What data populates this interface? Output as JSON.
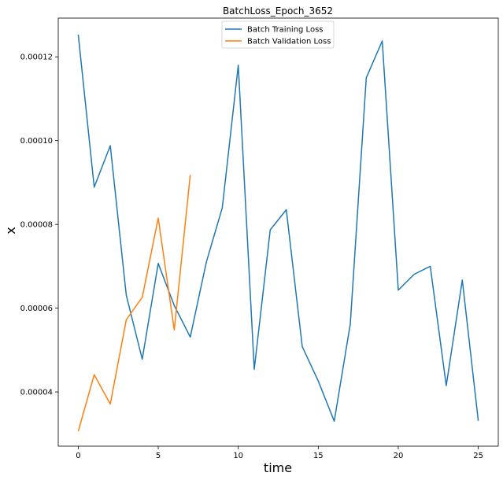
{
  "chart_data": {
    "type": "line",
    "title": "BatchLoss_Epoch_3652",
    "xlabel": "time",
    "ylabel": "x",
    "xlim": [
      -1.25,
      26.25
    ],
    "ylim": [
      2.705e-05,
      0.00012925
    ],
    "xticks": [
      0,
      5,
      10,
      15,
      20,
      25
    ],
    "xtick_labels": [
      "0",
      "5",
      "10",
      "15",
      "20",
      "25"
    ],
    "yticks": [
      4e-05,
      6e-05,
      8e-05,
      0.0001,
      0.00012
    ],
    "ytick_labels": [
      "0.00004",
      "0.00006",
      "0.00008",
      "0.00010",
      "0.00012"
    ],
    "grid": false,
    "legend_position": "upper center",
    "series": [
      {
        "name": "Batch Training Loss",
        "color": "#1f77b4",
        "x": [
          0,
          1,
          2,
          3,
          4,
          5,
          6,
          7,
          8,
          9,
          10,
          11,
          12,
          13,
          14,
          15,
          16,
          17,
          18,
          19,
          20,
          21,
          22,
          23,
          24,
          25
        ],
        "y": [
          0.0001253,
          8.89e-05,
          9.88e-05,
          6.31e-05,
          4.78e-05,
          7.07e-05,
          6.06e-05,
          5.31e-05,
          7.09e-05,
          8.4e-05,
          0.000118,
          4.54e-05,
          7.87e-05,
          8.35e-05,
          5.08e-05,
          4.26e-05,
          3.3e-05,
          5.62e-05,
          0.000115,
          0.0001238,
          6.43e-05,
          6.81e-05,
          7e-05,
          4.15e-05,
          6.67e-05,
          3.31e-05
        ]
      },
      {
        "name": "Batch Validation Loss",
        "color": "#ff7f0e",
        "x": [
          0,
          1,
          2,
          3,
          4,
          5,
          6,
          7
        ],
        "y": [
          3.06e-05,
          4.41e-05,
          3.71e-05,
          5.72e-05,
          6.26e-05,
          8.15e-05,
          5.48e-05,
          9.18e-05
        ]
      }
    ]
  }
}
